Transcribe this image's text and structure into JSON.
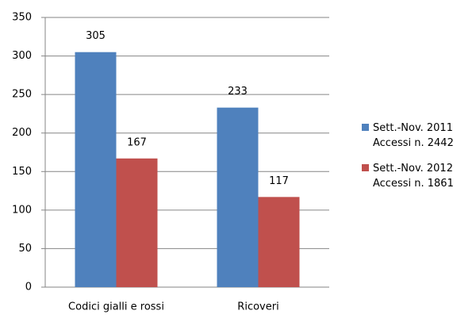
{
  "chart_data": {
    "type": "bar",
    "categories": [
      "Codici gialli e rossi",
      "Ricoveri"
    ],
    "series": [
      {
        "name": "Sett.-Nov. 2011\nAccessi n. 2442",
        "color": "#4f81bd",
        "values": [
          305,
          233
        ]
      },
      {
        "name": "Sett.-Nov. 2012\nAccessi n. 1861",
        "color": "#c0504d",
        "values": [
          167,
          117
        ]
      }
    ],
    "ylim": [
      0,
      350
    ],
    "yticks": [
      0,
      50,
      100,
      150,
      200,
      250,
      300,
      350
    ],
    "grid": true,
    "legend": "right"
  }
}
